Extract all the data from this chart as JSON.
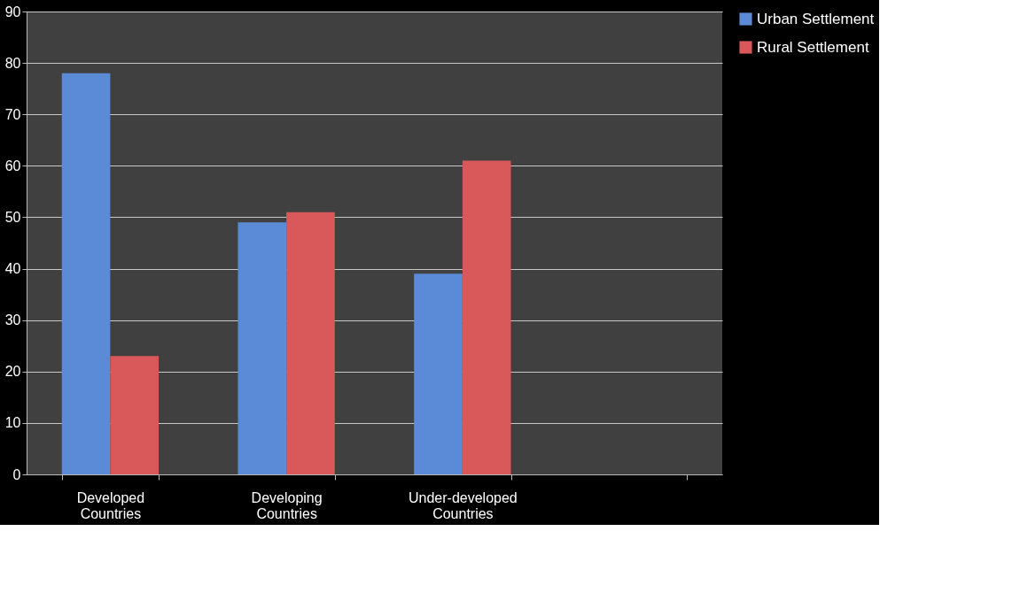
{
  "chart_data": {
    "type": "bar",
    "categories": [
      "Developed Countries",
      "Developing Countries",
      "Under-developed Countries",
      null
    ],
    "series": [
      {
        "name": "Urban Settlement",
        "color": "#5b8bd6",
        "values": [
          78,
          49,
          39,
          null
        ]
      },
      {
        "name": "Rural Settlement",
        "color": "#d9595b",
        "values": [
          23,
          51,
          61,
          null
        ]
      }
    ],
    "ylim": [
      0,
      90
    ],
    "yticks": [
      0,
      10,
      20,
      30,
      40,
      50,
      60,
      70,
      80,
      90
    ],
    "grid": "y",
    "legend": "right"
  }
}
